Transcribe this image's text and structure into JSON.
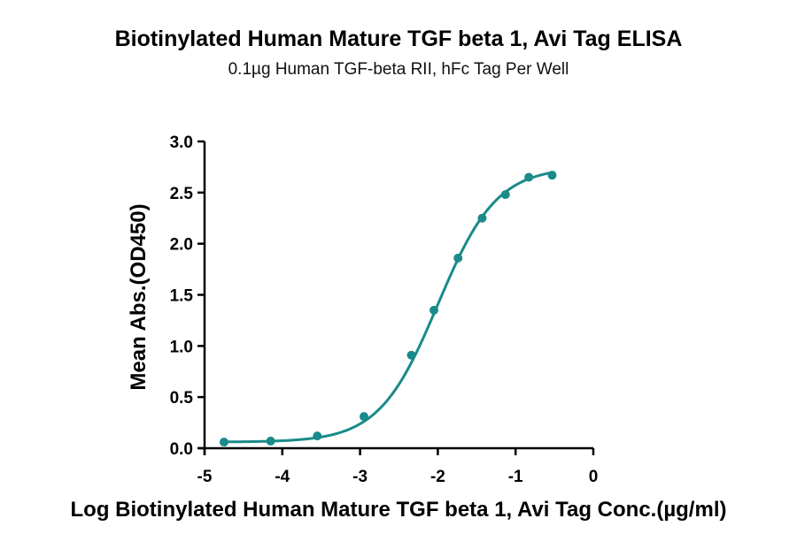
{
  "chart_data": {
    "type": "scatter",
    "title": "Biotinylated Human Mature TGF beta 1, Avi Tag ELISA",
    "subtitle": "0.1µg Human TGF-beta RII, hFc Tag Per Well",
    "xlabel": "Log Biotinylated Human Mature TGF beta 1, Avi Tag Conc.(µg/ml)",
    "ylabel": "Mean Abs.(OD450)",
    "xlim": [
      -5,
      0
    ],
    "ylim": [
      0,
      3.0
    ],
    "x_ticks": [
      "-5",
      "-4",
      "-3",
      "-2",
      "-1",
      "0"
    ],
    "y_ticks": [
      "0.0",
      "0.5",
      "1.0",
      "1.5",
      "2.0",
      "2.5",
      "3.0"
    ],
    "grid": false,
    "color": "#1a8a8a",
    "series": [
      {
        "x": [
          -4.75,
          -4.15,
          -3.55,
          -2.95,
          -2.34,
          -2.05,
          -1.74,
          -1.43,
          -1.13,
          -0.83,
          -0.53
        ],
        "y": [
          0.06,
          0.07,
          0.12,
          0.31,
          0.91,
          1.35,
          1.86,
          2.25,
          2.48,
          2.65,
          2.67
        ],
        "fit": "sigmoidal 4PL"
      }
    ]
  }
}
